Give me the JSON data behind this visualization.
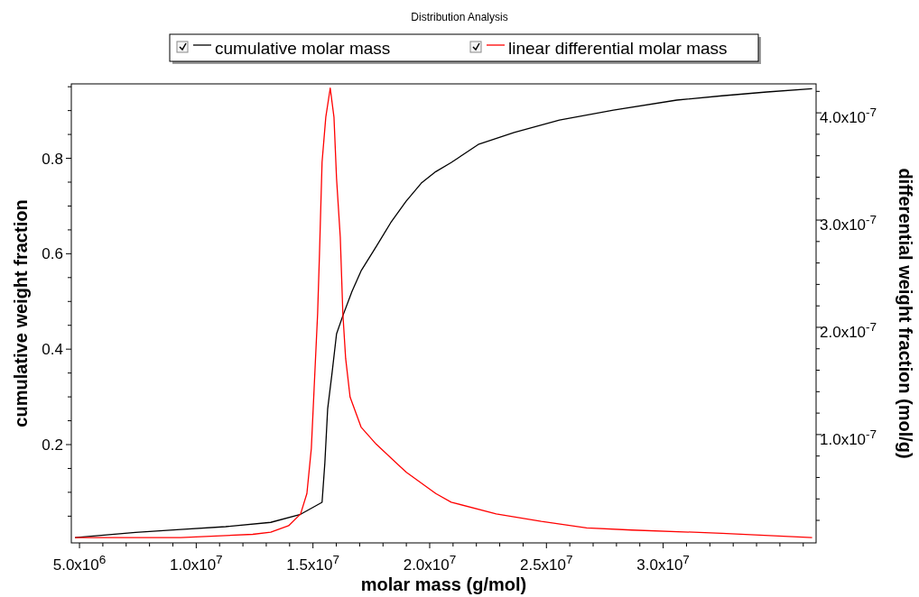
{
  "chart_data": {
    "type": "line",
    "title": "Distribution Analysis",
    "xlabel": "molar mass (g/mol)",
    "ylabel": "cumulative weight fraction",
    "y2label": "differential weight fraction (mol/g)",
    "legend": "top",
    "xlim": [
      4650000,
      36550000
    ],
    "xticks": [
      {
        "value": 5000000,
        "label": "5.0x10$^{6}$"
      },
      {
        "value": 6000000,
        "label": null
      },
      {
        "value": 7000000,
        "label": null
      },
      {
        "value": 8000000,
        "label": null
      },
      {
        "value": 9000000,
        "label": null
      },
      {
        "value": 10000000,
        "label": "1.0x10$^{7}$"
      },
      {
        "value": 11000000,
        "label": null
      },
      {
        "value": 12000000,
        "label": null
      },
      {
        "value": 13000000,
        "label": null
      },
      {
        "value": 14000000,
        "label": null
      },
      {
        "value": 15000000,
        "label": "1.5x10$^{7}$"
      },
      {
        "value": 16000000,
        "label": null
      },
      {
        "value": 17000000,
        "label": null
      },
      {
        "value": 18000000,
        "label": null
      },
      {
        "value": 19000000,
        "label": null
      },
      {
        "value": 20000000,
        "label": "2.0x10$^{7}$"
      },
      {
        "value": 21000000,
        "label": null
      },
      {
        "value": 22000000,
        "label": null
      },
      {
        "value": 23000000,
        "label": null
      },
      {
        "value": 24000000,
        "label": null
      },
      {
        "value": 25000000,
        "label": "2.5x10$^{7}$"
      },
      {
        "value": 26000000,
        "label": null
      },
      {
        "value": 27000000,
        "label": null
      },
      {
        "value": 28000000,
        "label": null
      },
      {
        "value": 29000000,
        "label": null
      },
      {
        "value": 30000000,
        "label": "3.0x10$^{7}$"
      },
      {
        "value": 31000000,
        "label": null
      },
      {
        "value": 32000000,
        "label": null
      },
      {
        "value": 33000000,
        "label": null
      },
      {
        "value": 34000000,
        "label": null
      },
      {
        "value": 35000000,
        "label": null
      },
      {
        "value": 36000000,
        "label": null
      }
    ],
    "ylim": [
      -0.006,
      0.956
    ],
    "yticks": [
      {
        "value": 0.05,
        "label": null
      },
      {
        "value": 0.1,
        "label": null
      },
      {
        "value": 0.15,
        "label": null
      },
      0.2,
      {
        "value": 0.25,
        "label": null
      },
      {
        "value": 0.3,
        "label": null
      },
      {
        "value": 0.35,
        "label": null
      },
      0.4,
      {
        "value": 0.45,
        "label": null
      },
      {
        "value": 0.5,
        "label": null
      },
      {
        "value": 0.55,
        "label": null
      },
      0.6,
      {
        "value": 0.65,
        "label": null
      },
      {
        "value": 0.7,
        "label": null
      },
      {
        "value": 0.75,
        "label": null
      },
      0.8,
      {
        "value": 0.85,
        "label": null
      },
      {
        "value": 0.9,
        "label": null
      },
      {
        "value": 0.95,
        "label": null
      }
    ],
    "y2lim": [
      -1e-09,
      4.27e-07
    ],
    "y2ticks": [
      {
        "value": 2e-08,
        "label": null
      },
      {
        "value": 4e-08,
        "label": null
      },
      {
        "value": 6e-08,
        "label": null
      },
      {
        "value": 8e-08,
        "label": null
      },
      {
        "value": 1e-07,
        "label": "1.0x10$^{-7}$"
      },
      {
        "value": 1.2e-07,
        "label": null
      },
      {
        "value": 1.4e-07,
        "label": null
      },
      {
        "value": 1.6e-07,
        "label": null
      },
      {
        "value": 1.8e-07,
        "label": null
      },
      {
        "value": 2e-07,
        "label": "2.0x10$^{-7}$"
      },
      {
        "value": 2.2e-07,
        "label": null
      },
      {
        "value": 2.4e-07,
        "label": null
      },
      {
        "value": 2.6e-07,
        "label": null
      },
      {
        "value": 2.8e-07,
        "label": null
      },
      {
        "value": 3e-07,
        "label": "3.0x10$^{-7}$"
      },
      {
        "value": 3.2e-07,
        "label": null
      },
      {
        "value": 3.4e-07,
        "label": null
      },
      {
        "value": 3.6e-07,
        "label": null
      },
      {
        "value": 3.8e-07,
        "label": null
      },
      {
        "value": 4e-07,
        "label": "4.0x10$^{-7}$"
      },
      {
        "value": 4.2e-07,
        "label": null
      }
    ],
    "series": [
      {
        "name": "cumulative molar mass",
        "color": "#000000",
        "x": [
          4810000,
          7400000,
          9330000,
          11260000,
          13190000,
          14470000,
          15390000,
          15510000,
          15630000,
          15820000,
          16010000,
          16280000,
          16670000,
          17060000,
          17710000,
          18330000,
          18990000,
          19640000,
          20260000,
          20920000,
          22080000,
          23620000,
          25560000,
          27870000,
          30580000,
          32510000,
          34440000,
          36380000
        ],
        "values": [
          0.005,
          0.016,
          0.022,
          0.028,
          0.037,
          0.054,
          0.079,
          0.162,
          0.275,
          0.351,
          0.432,
          0.47,
          0.521,
          0.564,
          0.615,
          0.665,
          0.71,
          0.748,
          0.772,
          0.791,
          0.829,
          0.854,
          0.88,
          0.901,
          0.922,
          0.931,
          0.939,
          0.946
        ]
      },
      {
        "name": "linear differential molar mass",
        "color": "#ff0000",
        "axis": "y2",
        "x": [
          4810000,
          9330000,
          12420000,
          13190000,
          13960000,
          14470000,
          14740000,
          14930000,
          15050000,
          15200000,
          15280000,
          15390000,
          15550000,
          15740000,
          15900000,
          16010000,
          16170000,
          16280000,
          16400000,
          16590000,
          17060000,
          17710000,
          18990000,
          20260000,
          20920000,
          22850000,
          24780000,
          26720000,
          28650000,
          32510000,
          36380000
        ],
        "values": [
          4e-09,
          4e-09,
          7e-09,
          9e-09,
          1.5e-08,
          2.6e-08,
          4.5e-08,
          8.7e-08,
          1.43e-07,
          2.13e-07,
          2.69e-07,
          3.54e-07,
          3.96e-07,
          4.23e-07,
          3.96e-07,
          3.39e-07,
          2.84e-07,
          2.13e-07,
          1.71e-07,
          1.35e-07,
          1.07e-07,
          9.1e-08,
          6.5e-08,
          4.5e-08,
          3.7e-08,
          2.6e-08,
          1.9e-08,
          1.3e-08,
          1.1e-08,
          8e-09,
          4e-09
        ]
      }
    ]
  }
}
